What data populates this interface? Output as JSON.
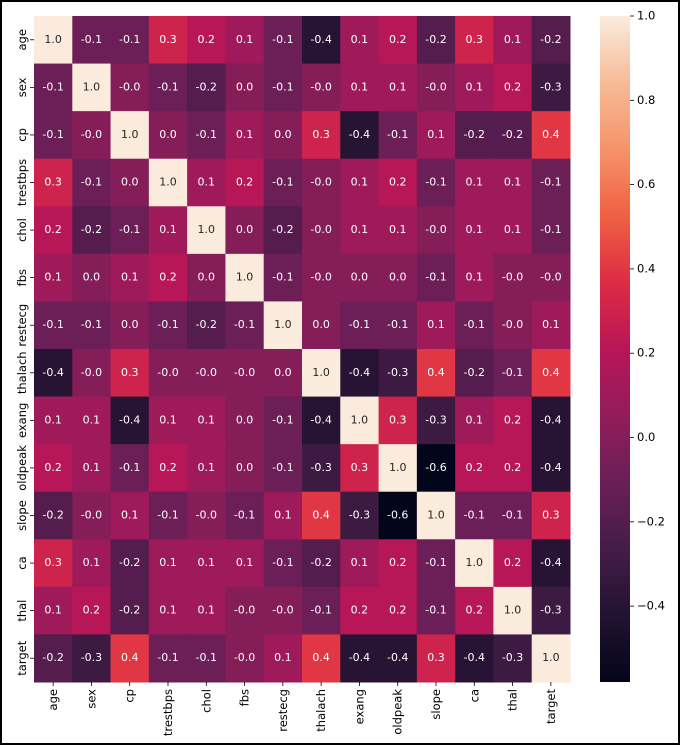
{
  "chart_data": {
    "type": "heatmap",
    "title": "",
    "xlabel": "",
    "ylabel": "",
    "labels": [
      "age",
      "sex",
      "cp",
      "trestbps",
      "chol",
      "fbs",
      "restecg",
      "thalach",
      "exang",
      "oldpeak",
      "slope",
      "ca",
      "thal",
      "target"
    ],
    "values": [
      [
        1.0,
        -0.1,
        -0.1,
        0.3,
        0.2,
        0.1,
        -0.1,
        -0.4,
        0.1,
        0.2,
        -0.2,
        0.3,
        0.1,
        -0.2
      ],
      [
        -0.1,
        1.0,
        -0.0,
        -0.1,
        -0.2,
        0.0,
        -0.1,
        -0.0,
        0.1,
        0.1,
        -0.0,
        0.1,
        0.2,
        -0.3
      ],
      [
        -0.1,
        -0.0,
        1.0,
        0.0,
        -0.1,
        0.1,
        0.0,
        0.3,
        -0.4,
        -0.1,
        0.1,
        -0.2,
        -0.2,
        0.4
      ],
      [
        0.3,
        -0.1,
        0.0,
        1.0,
        0.1,
        0.2,
        -0.1,
        -0.0,
        0.1,
        0.2,
        -0.1,
        0.1,
        0.1,
        -0.1
      ],
      [
        0.2,
        -0.2,
        -0.1,
        0.1,
        1.0,
        0.0,
        -0.2,
        -0.0,
        0.1,
        0.1,
        -0.0,
        0.1,
        0.1,
        -0.1
      ],
      [
        0.1,
        0.0,
        0.1,
        0.2,
        0.0,
        1.0,
        -0.1,
        -0.0,
        0.0,
        0.0,
        -0.1,
        0.1,
        -0.0,
        -0.0
      ],
      [
        -0.1,
        -0.1,
        0.0,
        -0.1,
        -0.2,
        -0.1,
        1.0,
        0.0,
        -0.1,
        -0.1,
        0.1,
        -0.1,
        -0.0,
        0.1
      ],
      [
        -0.4,
        -0.0,
        0.3,
        -0.0,
        -0.0,
        -0.0,
        0.0,
        1.0,
        -0.4,
        -0.3,
        0.4,
        -0.2,
        -0.1,
        0.4
      ],
      [
        0.1,
        0.1,
        -0.4,
        0.1,
        0.1,
        0.0,
        -0.1,
        -0.4,
        1.0,
        0.3,
        -0.3,
        0.1,
        0.2,
        -0.4
      ],
      [
        0.2,
        0.1,
        -0.1,
        0.2,
        0.1,
        0.0,
        -0.1,
        -0.3,
        0.3,
        1.0,
        -0.6,
        0.2,
        0.2,
        -0.4
      ],
      [
        -0.2,
        -0.0,
        0.1,
        -0.1,
        -0.0,
        -0.1,
        0.1,
        0.4,
        -0.3,
        -0.6,
        1.0,
        -0.1,
        -0.1,
        0.3
      ],
      [
        0.3,
        0.1,
        -0.2,
        0.1,
        0.1,
        0.1,
        -0.1,
        -0.2,
        0.1,
        0.2,
        -0.1,
        1.0,
        0.2,
        -0.4
      ],
      [
        0.1,
        0.2,
        -0.2,
        0.1,
        0.1,
        -0.0,
        -0.0,
        -0.1,
        0.2,
        0.2,
        -0.1,
        0.2,
        1.0,
        -0.3
      ],
      [
        -0.2,
        -0.3,
        0.4,
        -0.1,
        -0.1,
        -0.0,
        0.1,
        0.4,
        -0.4,
        -0.4,
        0.3,
        -0.4,
        -0.3,
        1.0
      ]
    ],
    "colorbar": {
      "range": [
        -0.58,
        1.0
      ],
      "ticks": [
        1.0,
        0.8,
        0.6,
        0.4,
        0.2,
        0.0,
        -0.2,
        -0.4
      ],
      "tick_labels": [
        "1.0",
        "0.8",
        "0.6",
        "0.4",
        "0.2",
        "0.0",
        "−0.2",
        "−0.4"
      ],
      "colormap": "rocket",
      "stops": [
        "#03051a",
        "#221331",
        "#451c47",
        "#6a1f56",
        "#921c5b",
        "#b91657",
        "#dd2c45",
        "#f06043",
        "#f5936a",
        "#f6bb97",
        "#faebdd"
      ]
    }
  }
}
